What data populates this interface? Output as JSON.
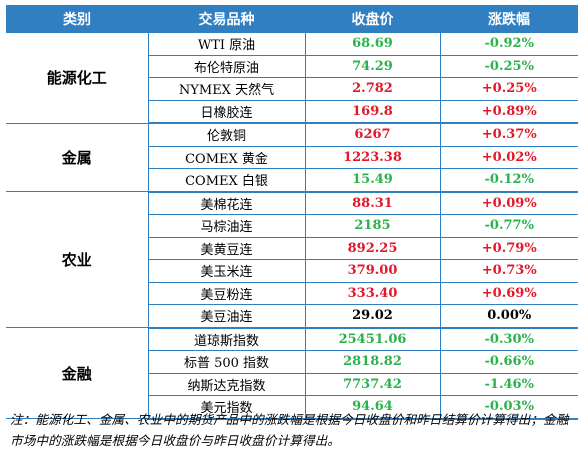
{
  "colors": {
    "header_bg": "#2f7fc1",
    "up": "#e0182a",
    "down": "#2bb24c",
    "flat": "#000000"
  },
  "header": {
    "category": "类别",
    "product": "交易品种",
    "close": "收盘价",
    "change": "涨跌幅"
  },
  "groups": [
    {
      "category": "能源化工",
      "rows": [
        {
          "name": "WTI 原油",
          "close": "68.69",
          "change": "-0.92%",
          "dir": "down"
        },
        {
          "name": "布伦特原油",
          "close": "74.29",
          "change": "-0.25%",
          "dir": "down"
        },
        {
          "name": "NYMEX 天然气",
          "close": "2.782",
          "change": "+0.25%",
          "dir": "up"
        },
        {
          "name": "日橡胶连",
          "close": "169.8",
          "change": "+0.89%",
          "dir": "up"
        }
      ]
    },
    {
      "category": "金属",
      "rows": [
        {
          "name": "伦敦铜",
          "close": "6267",
          "change": "+0.37%",
          "dir": "up"
        },
        {
          "name": "COMEX 黄金",
          "close": "1223.38",
          "change": "+0.02%",
          "dir": "up"
        },
        {
          "name": "COMEX 白银",
          "close": "15.49",
          "change": "-0.12%",
          "dir": "down"
        }
      ]
    },
    {
      "category": "农业",
      "rows": [
        {
          "name": "美棉花连",
          "close": "88.31",
          "change": "+0.09%",
          "dir": "up"
        },
        {
          "name": "马棕油连",
          "close": "2185",
          "change": "-0.77%",
          "dir": "down"
        },
        {
          "name": "美黄豆连",
          "close": "892.25",
          "change": "+0.79%",
          "dir": "up"
        },
        {
          "name": "美玉米连",
          "close": "379.00",
          "change": "+0.73%",
          "dir": "up"
        },
        {
          "name": "美豆粉连",
          "close": "333.40",
          "change": "+0.69%",
          "dir": "up"
        },
        {
          "name": "美豆油连",
          "close": "29.02",
          "change": "0.00%",
          "dir": "flat"
        }
      ]
    },
    {
      "category": "金融",
      "rows": [
        {
          "name": "道琼斯指数",
          "close": "25451.06",
          "change": "-0.30%",
          "dir": "down"
        },
        {
          "name": "标普 500 指数",
          "close": "2818.82",
          "change": "-0.66%",
          "dir": "down"
        },
        {
          "name": "纳斯达克指数",
          "close": "7737.42",
          "change": "-1.46%",
          "dir": "down"
        },
        {
          "name": "美元指数",
          "close": "94.64",
          "change": "-0.03%",
          "dir": "down"
        }
      ]
    }
  ],
  "footnote": "注：能源化工、金属、农业中的期货产品中的涨跌幅是根据今日收盘价和昨日结算价计算得出；金融市场中的涨跌幅是根据今日收盘价与昨日收盘价计算得出。"
}
